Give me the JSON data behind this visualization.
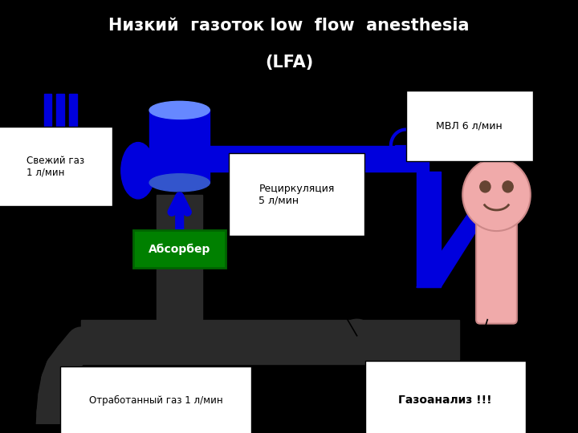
{
  "title_line1": "Низкий  газоток low  flow  anesthesia",
  "title_line2": "(LFA)",
  "title_color": "#ffffff",
  "bg_black": "#000000",
  "bg_white": "#ffffff",
  "blue": "#0000dd",
  "blue_light": "#4466ff",
  "dark": "#2a2a2a",
  "green": "#008000",
  "pink": "#f0aaaa",
  "label_mvl": "МВЛ 6 л/мин",
  "label_fresh": "Свежий газ\n1 л/мин",
  "label_absorber": "Абсорбер",
  "label_recirculation": "Рециркуляция\n5 л/мин",
  "label_waste": "Отработанный газ 1 л/мин",
  "label_gasanalysis": "Газоанализ !!!",
  "figsize": [
    7.2,
    5.4
  ],
  "dpi": 100
}
